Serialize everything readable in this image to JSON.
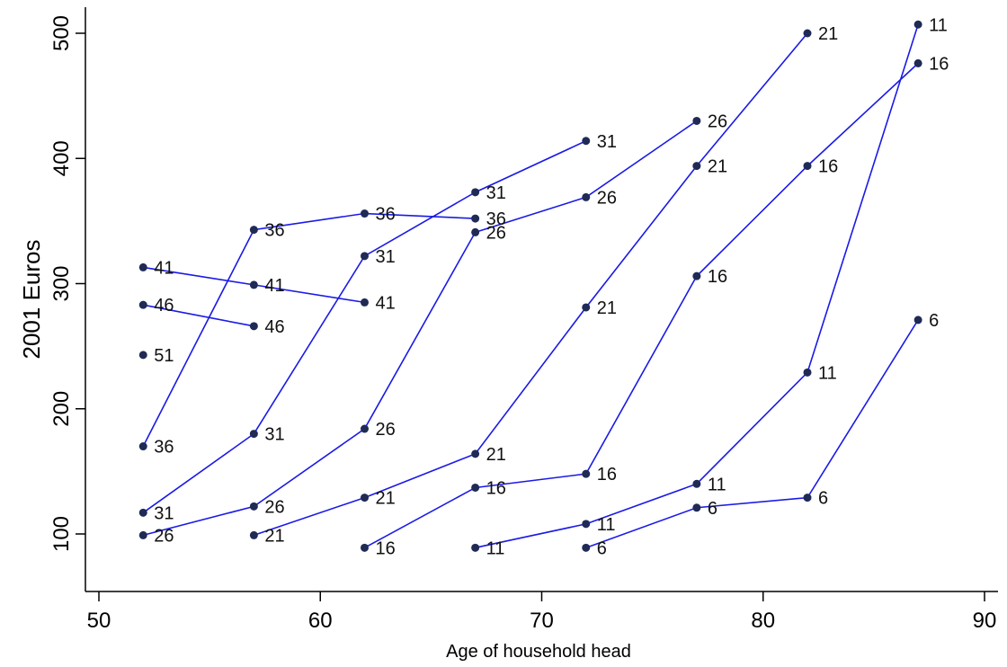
{
  "chart_data": {
    "type": "line",
    "title": "",
    "xlabel": "Age of household head",
    "ylabel": "2001 Euros",
    "xlim": [
      50,
      90
    ],
    "ylim": [
      65,
      520
    ],
    "x_ticks": [
      50,
      60,
      70,
      80,
      90
    ],
    "y_ticks": [
      100,
      200,
      300,
      400,
      500
    ],
    "grid": false,
    "legend": "none",
    "line_color": "#1a1ae6",
    "marker_color": "#1f2a55",
    "series": [
      {
        "points": [
          {
            "x": 52,
            "y": 313,
            "label": "41"
          },
          {
            "x": 57,
            "y": 299,
            "label": "41"
          },
          {
            "x": 62,
            "y": 285,
            "label": "41"
          }
        ]
      },
      {
        "points": [
          {
            "x": 52,
            "y": 283,
            "label": "46"
          },
          {
            "x": 57,
            "y": 266,
            "label": "46"
          }
        ]
      },
      {
        "points": [
          {
            "x": 52,
            "y": 243,
            "label": "51"
          }
        ]
      },
      {
        "points": [
          {
            "x": 52,
            "y": 170,
            "label": "36"
          },
          {
            "x": 57,
            "y": 343,
            "label": "36"
          },
          {
            "x": 62,
            "y": 356,
            "label": "36"
          },
          {
            "x": 67,
            "y": 352,
            "label": "36"
          }
        ]
      },
      {
        "points": [
          {
            "x": 52,
            "y": 117,
            "label": "31"
          },
          {
            "x": 57,
            "y": 180,
            "label": "31"
          },
          {
            "x": 62,
            "y": 322,
            "label": "31"
          },
          {
            "x": 67,
            "y": 373,
            "label": "31"
          },
          {
            "x": 72,
            "y": 414,
            "label": "31"
          }
        ]
      },
      {
        "points": [
          {
            "x": 52,
            "y": 99,
            "label": "26"
          },
          {
            "x": 57,
            "y": 122,
            "label": "26"
          },
          {
            "x": 62,
            "y": 184,
            "label": "26"
          },
          {
            "x": 67,
            "y": 341,
            "label": "26"
          },
          {
            "x": 72,
            "y": 369,
            "label": "26"
          },
          {
            "x": 77,
            "y": 430,
            "label": "26"
          }
        ]
      },
      {
        "points": [
          {
            "x": 57,
            "y": 99,
            "label": "21"
          },
          {
            "x": 62,
            "y": 129,
            "label": "21"
          },
          {
            "x": 67,
            "y": 164,
            "label": "21"
          },
          {
            "x": 72,
            "y": 281,
            "label": "21"
          },
          {
            "x": 77,
            "y": 394,
            "label": "21"
          },
          {
            "x": 82,
            "y": 500,
            "label": "21"
          }
        ]
      },
      {
        "points": [
          {
            "x": 62,
            "y": 89,
            "label": "16"
          },
          {
            "x": 67,
            "y": 137,
            "label": "16"
          },
          {
            "x": 72,
            "y": 148,
            "label": "16"
          },
          {
            "x": 77,
            "y": 306,
            "label": "16"
          },
          {
            "x": 82,
            "y": 394,
            "label": "16"
          },
          {
            "x": 87,
            "y": 476,
            "label": "16"
          }
        ]
      },
      {
        "points": [
          {
            "x": 67,
            "y": 89,
            "label": "11"
          },
          {
            "x": 72,
            "y": 108,
            "label": "11"
          },
          {
            "x": 77,
            "y": 140,
            "label": "11"
          },
          {
            "x": 82,
            "y": 229,
            "label": "11"
          },
          {
            "x": 87,
            "y": 507,
            "label": "11"
          }
        ]
      },
      {
        "points": [
          {
            "x": 72,
            "y": 89,
            "label": "6"
          },
          {
            "x": 77,
            "y": 121,
            "label": "6"
          },
          {
            "x": 82,
            "y": 129,
            "label": "6"
          },
          {
            "x": 87,
            "y": 271,
            "label": "6"
          }
        ]
      }
    ]
  }
}
